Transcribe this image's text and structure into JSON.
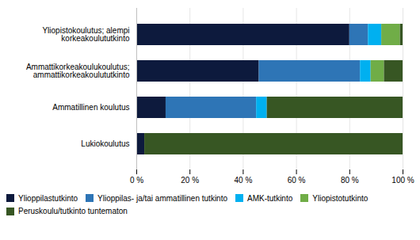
{
  "chart_data": {
    "type": "bar",
    "orientation": "horizontal",
    "stacked": true,
    "categories": [
      "Lukiokoulutus",
      "Ammatillinen koulutus",
      "Ammattikorkeakoulukoulutus;\nammattikorkeakoulututkinto",
      "Yliopistokoulutus; alempi\nkorkeakoulututkinto"
    ],
    "series": [
      {
        "name": "Ylioppilastutkinto",
        "color": "#0d1a3d",
        "values": [
          3,
          11,
          46,
          80
        ]
      },
      {
        "name": "Ylioppilas- ja/tai ammatillinen tutkinto",
        "color": "#2e75b6",
        "values": [
          0,
          34,
          38,
          7
        ]
      },
      {
        "name": "AMK-tutkinto",
        "color": "#00b0f0",
        "values": [
          0,
          4,
          4,
          5
        ]
      },
      {
        "name": "Yliopistotutkinto",
        "color": "#70ad47",
        "values": [
          0,
          0,
          5,
          7
        ]
      },
      {
        "name": "Peruskoulu/tutkinto tuntematon",
        "color": "#375623",
        "values": [
          97,
          51,
          7,
          1
        ]
      }
    ],
    "xlim": [
      0,
      100
    ],
    "xticks": [
      {
        "value": 0,
        "label": "0 %"
      },
      {
        "value": 20,
        "label": "20 %"
      },
      {
        "value": 40,
        "label": "40 %"
      },
      {
        "value": 60,
        "label": "60 %"
      },
      {
        "value": 80,
        "label": "80 %"
      },
      {
        "value": 100,
        "label": "100 %"
      }
    ],
    "grid": true,
    "legend": "bottom"
  }
}
